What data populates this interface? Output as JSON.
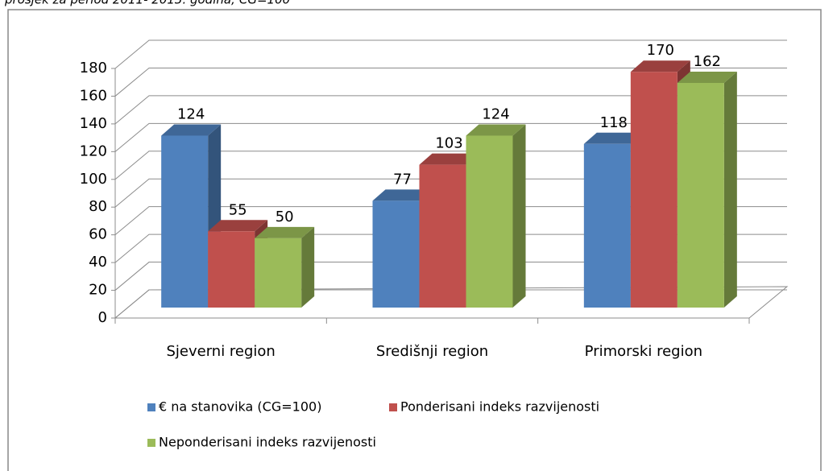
{
  "chart_data": {
    "type": "bar3d",
    "subtitle": "prosjek za period 2011- 2013. godina; CG=100",
    "categories": [
      "Sjeverni region",
      "Središnji region",
      "Primorski region"
    ],
    "series": [
      {
        "name": "€ na stanovika (CG=100)",
        "color": "#4f81bd",
        "values": [
          124,
          77,
          118
        ]
      },
      {
        "name": "Ponderisani indeks razvijenosti",
        "color": "#c0504d",
        "values": [
          55,
          103,
          170
        ]
      },
      {
        "name": "Neponderisani indeks razvijenosti",
        "color": "#9bbb59",
        "values": [
          50,
          124,
          162
        ]
      }
    ],
    "ylim": [
      0,
      180
    ],
    "yticks": [
      0,
      20,
      40,
      60,
      80,
      100,
      120,
      140,
      160,
      180
    ],
    "grid": true,
    "legend": "bottom"
  }
}
